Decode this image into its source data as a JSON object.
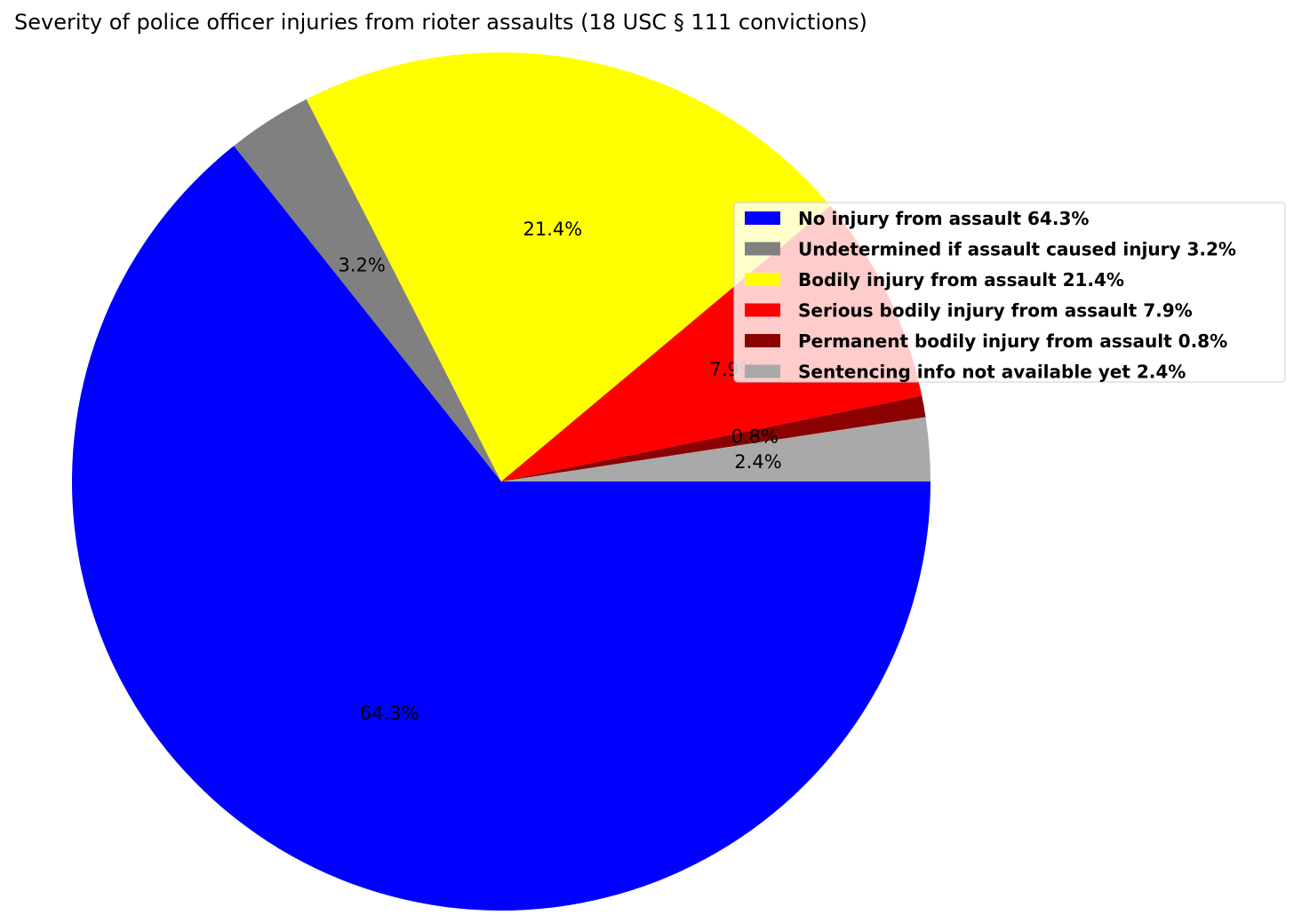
{
  "chart_data": {
    "type": "pie",
    "title": "Severity of police officer injuries from rioter assaults (18 USC § 111 convictions)",
    "start_angle_deg": 0,
    "direction": "clockwise",
    "legend_position": "right",
    "slices": [
      {
        "name": "No injury from assault",
        "value": 64.3,
        "label": "64.3%",
        "legend": "No injury from assault 64.3%",
        "color": "#0000ff"
      },
      {
        "name": "Undetermined if assault caused injury",
        "value": 3.2,
        "label": "3.2%",
        "legend": "Undetermined if assault caused injury 3.2%",
        "color": "#808080"
      },
      {
        "name": "Bodily injury from assault",
        "value": 21.4,
        "label": "21.4%",
        "legend": "Bodily injury from assault 21.4%",
        "color": "#ffff00"
      },
      {
        "name": "Serious bodily injury from assault",
        "value": 7.9,
        "label": "7.9%",
        "legend": "Serious bodily injury from assault 7.9%",
        "color": "#ff0000"
      },
      {
        "name": "Permanent bodily injury from assault",
        "value": 0.8,
        "label": "0.8%",
        "legend": "Permanent bodily injury from assault 0.8%",
        "color": "#8b0000"
      },
      {
        "name": "Sentencing info not available yet",
        "value": 2.4,
        "label": "2.4%",
        "legend": "Sentencing info not available yet 2.4%",
        "color": "#a9a9a9"
      }
    ]
  }
}
